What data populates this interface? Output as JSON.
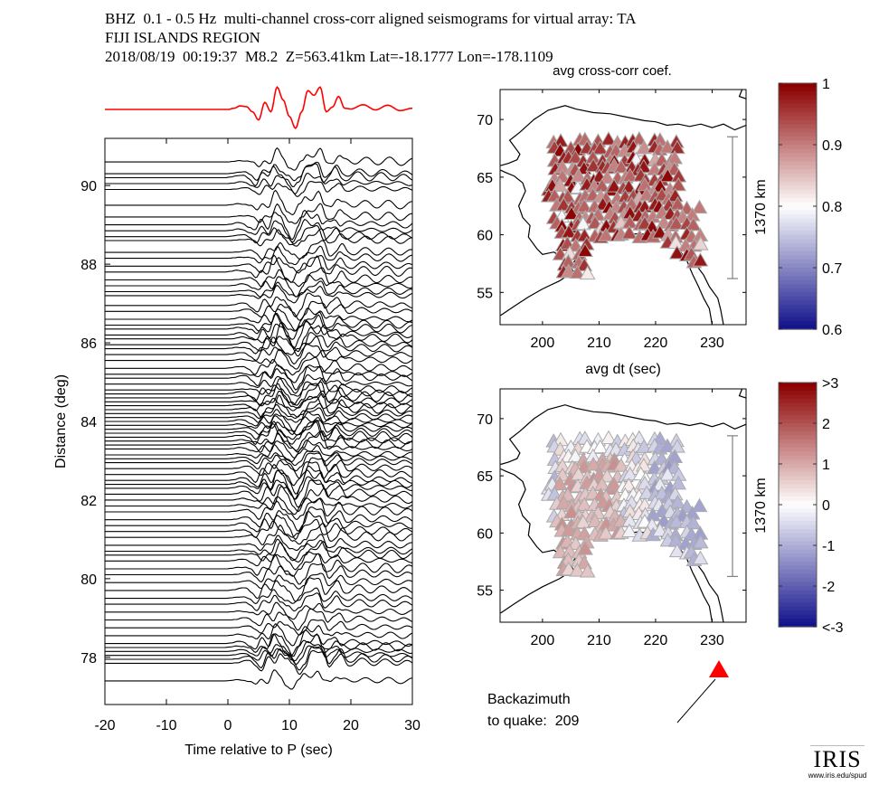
{
  "header": {
    "line1": "BHZ  0.1 - 0.5 Hz  multi-channel cross-corr aligned seismograms for virtual array: TA",
    "line2": "FIJI ISLANDS REGION",
    "line3": "2018/08/19  00:19:37  M8.2  Z=563.41km Lat=-18.1777 Lon=-178.1109"
  },
  "backazimuth": {
    "label_line1": "Backazimuth",
    "label_line2": "to quake:  209",
    "value_deg": 209
  },
  "logo": {
    "name": "IRIS",
    "url_text": "www.iris.edu/spud"
  },
  "colors": {
    "stack_trace": "#ff0000",
    "traces": "#000000",
    "arrow_marker": "#ff0000",
    "scale_bar": "#808080"
  },
  "chart_data": [
    {
      "type": "line",
      "name": "record-section",
      "title": "",
      "xlabel": "Time relative to P (sec)",
      "ylabel": "Distance (deg)",
      "xlim": [
        -20,
        30
      ],
      "ylim": [
        76.8,
        91.2
      ],
      "xticks": [
        -20,
        -10,
        0,
        10,
        20,
        30
      ],
      "xtick_labels": [
        "-20",
        "-10",
        "0",
        "10",
        "20",
        "30"
      ],
      "yticks": [
        78,
        80,
        82,
        84,
        86,
        88,
        90
      ],
      "ytick_labels": [
        "78",
        "80",
        "82",
        "84",
        "86",
        "88",
        "90"
      ],
      "stack_waveform": {
        "color": "red",
        "t": [
          -20,
          -10,
          0,
          1,
          2,
          3,
          4,
          5,
          6,
          7,
          8,
          9,
          10,
          11,
          12,
          13,
          14,
          15,
          16,
          17,
          18,
          19,
          20,
          22,
          24,
          26,
          28,
          30
        ],
        "amp": [
          0,
          0,
          0,
          0.05,
          0.15,
          0.12,
          -0.1,
          -0.45,
          0.3,
          -0.1,
          0.95,
          0.4,
          -0.3,
          -0.8,
          -0.1,
          0.8,
          0.6,
          0.95,
          -0.1,
          0.1,
          0.55,
          0.05,
          0.02,
          0.2,
          -0.02,
          0.18,
          -0.05,
          0.05
        ]
      },
      "trace_distances_deg": [
        90.6,
        90.3,
        90.2,
        90.05,
        89.9,
        89.5,
        89.2,
        89.0,
        88.85,
        88.7,
        88.6,
        88.3,
        88.15,
        87.95,
        87.8,
        87.6,
        87.45,
        87.3,
        87.2,
        86.95,
        86.8,
        86.6,
        86.45,
        86.35,
        86.2,
        86.1,
        85.95,
        85.85,
        85.7,
        85.55,
        85.35,
        85.2,
        85.1,
        84.95,
        84.8,
        84.7,
        84.6,
        84.5,
        84.4,
        84.3,
        84.2,
        84.1,
        84.0,
        83.9,
        83.8,
        83.7,
        83.6,
        83.5,
        83.4,
        83.3,
        83.15,
        83.05,
        82.95,
        82.8,
        82.65,
        82.5,
        82.4,
        82.3,
        82.15,
        82.0,
        81.85,
        81.7,
        81.5,
        81.35,
        81.2,
        81.05,
        80.85,
        80.7,
        80.6,
        80.45,
        80.25,
        80.1,
        79.9,
        79.7,
        79.5,
        79.35,
        79.15,
        78.95,
        78.75,
        78.55,
        78.35,
        78.25,
        78.15,
        78.05,
        77.95,
        77.85,
        77.4
      ]
    },
    {
      "type": "scatter",
      "name": "map-avg-cross-corr",
      "title": "avg cross-corr coef.",
      "xlabel": "avg dt (sec)",
      "xlim": [
        192.5,
        236
      ],
      "ylim": [
        52.2,
        72.6
      ],
      "xticks": [
        200,
        210,
        220,
        230
      ],
      "xtick_labels": [
        "200",
        "210",
        "220",
        "230"
      ],
      "yticks": [
        55,
        60,
        65,
        70
      ],
      "ytick_labels": [
        "55",
        "60",
        "65",
        "70"
      ],
      "scale_bar_label": "1370 km",
      "colorbar": {
        "range": [
          0.6,
          1.0
        ],
        "ticks": [
          0.6,
          0.7,
          0.8,
          0.9,
          1.0
        ],
        "tick_labels": [
          "0.6",
          "0.7",
          "0.8",
          "0.9",
          "1"
        ],
        "colormap": "blue-white-red"
      },
      "station_value_typical": 0.95
    },
    {
      "type": "scatter",
      "name": "map-avg-dt",
      "title": "avg dt (sec)",
      "xlim": [
        192.5,
        236
      ],
      "ylim": [
        52.2,
        72.6
      ],
      "xticks": [
        200,
        210,
        220,
        230
      ],
      "xtick_labels": [
        "200",
        "210",
        "220",
        "230"
      ],
      "yticks": [
        55,
        60,
        65,
        70
      ],
      "ytick_labels": [
        "55",
        "60",
        "65",
        "70"
      ],
      "scale_bar_label": "1370 km",
      "colorbar": {
        "range": [
          -3,
          3
        ],
        "ticks": [
          -3,
          -2,
          -1,
          0,
          1,
          2,
          3
        ],
        "tick_labels": [
          "<-3",
          "-2",
          "-1",
          "0",
          "1",
          "2",
          ">3"
        ],
        "colormap": "blue-white-red"
      }
    }
  ]
}
